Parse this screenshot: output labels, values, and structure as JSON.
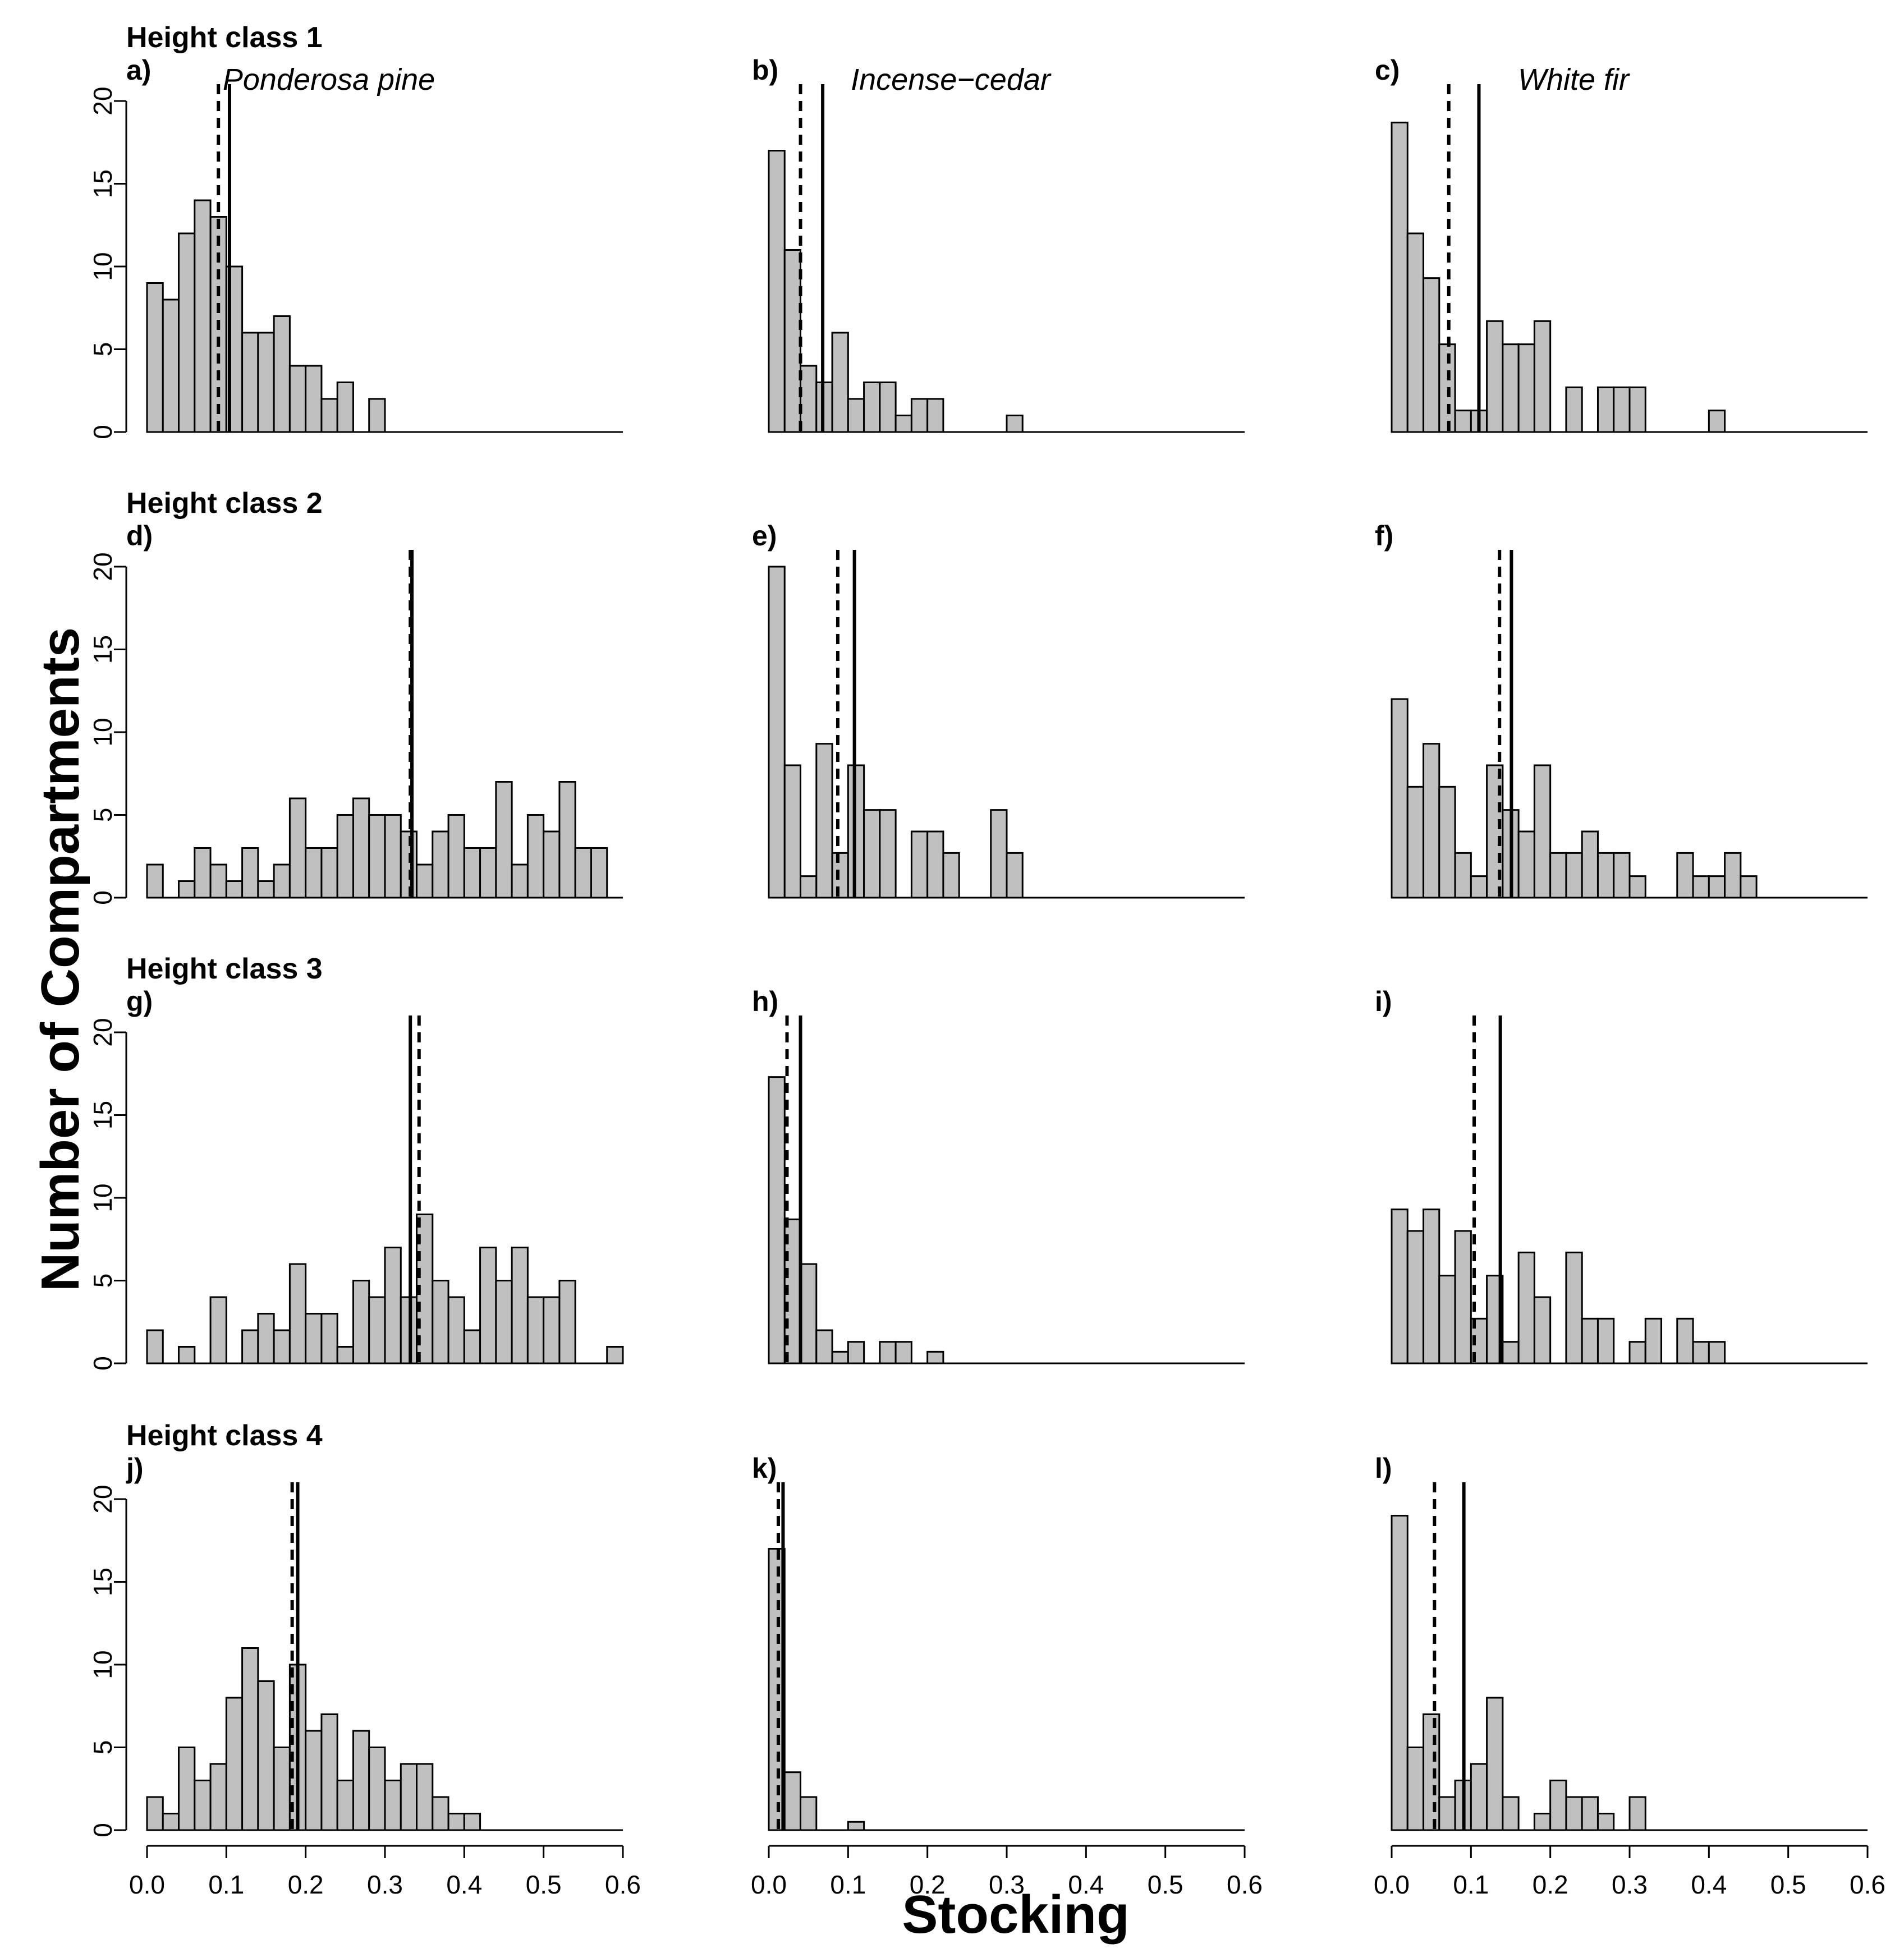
{
  "axis_titles": {
    "x": "Stocking",
    "y": "Number of Compartments"
  },
  "species": [
    "Ponderosa pine",
    "Incense−cedar",
    "White fir"
  ],
  "row_titles": [
    "Height class 1",
    "Height class 2",
    "Height class 3",
    "Height class 4"
  ],
  "colors": {
    "bar_fill": "#c0c0c0",
    "outline": "#000000",
    "background": "#ffffff"
  },
  "chart_data": [
    {
      "type": "bar",
      "panel": "a)",
      "row_title": "Height class 1",
      "species": "Ponderosa pine",
      "xlabel": "Stocking",
      "ylabel": "Number of Compartments",
      "xlim": [
        0,
        0.6
      ],
      "ylim": [
        0,
        20
      ],
      "bin_width": 0.02,
      "bin_start": 0,
      "values": [
        9,
        8,
        12,
        14,
        13,
        10,
        6,
        6,
        7,
        4,
        4,
        2,
        3,
        0,
        2
      ],
      "median_dashed": 0.09,
      "mean_solid": 0.104,
      "xticks": [
        "0.0",
        "0.1",
        "0.2",
        "0.3",
        "0.4",
        "0.5",
        "0.6"
      ],
      "yticks": [
        "0",
        "5",
        "10",
        "15",
        "20"
      ]
    },
    {
      "type": "bar",
      "panel": "b)",
      "species": "Incense−cedar",
      "xlim": [
        0,
        0.6
      ],
      "ylim": [
        0,
        20
      ],
      "bin_width": 0.02,
      "bin_start": 0,
      "values": [
        17,
        11,
        4,
        3,
        6,
        2,
        3,
        3,
        1,
        2,
        2,
        0,
        0,
        0,
        0,
        1
      ],
      "median_dashed": 0.04,
      "mean_solid": 0.068,
      "xticks": [
        "0.0",
        "0.1",
        "0.2",
        "0.3",
        "0.4",
        "0.5",
        "0.6"
      ]
    },
    {
      "type": "bar",
      "panel": "c)",
      "species": "White fir",
      "xlim": [
        0,
        0.6
      ],
      "ylim": [
        0,
        20
      ],
      "bin_width": 0.02,
      "bin_start": 0,
      "values": [
        18.7,
        12,
        9.3,
        5.3,
        1.3,
        1.3,
        6.7,
        5.3,
        5.3,
        6.7,
        0,
        2.7,
        0,
        2.7,
        2.7,
        2.7,
        0,
        0,
        0,
        0,
        1.3
      ],
      "median_dashed": 0.072,
      "mean_solid": 0.11,
      "xticks": [
        "0.0",
        "0.1",
        "0.2",
        "0.3",
        "0.4",
        "0.5",
        "0.6"
      ]
    },
    {
      "type": "bar",
      "panel": "d)",
      "row_title": "Height class 2",
      "species": "Ponderosa pine",
      "xlim": [
        0,
        0.6
      ],
      "ylim": [
        0,
        20
      ],
      "bin_width": 0.02,
      "bin_start": 0,
      "values": [
        2,
        0,
        1,
        3,
        2,
        1,
        3,
        1,
        2,
        6,
        3,
        3,
        5,
        6,
        5,
        5,
        4,
        2,
        4,
        5,
        3,
        3,
        7,
        2,
        5,
        4,
        7,
        3,
        3
      ],
      "median_dashed": 0.332,
      "mean_solid": 0.334,
      "xticks": [
        "0.0",
        "0.1",
        "0.2",
        "0.3",
        "0.4",
        "0.5",
        "0.6"
      ],
      "yticks": [
        "0",
        "5",
        "10",
        "15",
        "20"
      ]
    },
    {
      "type": "bar",
      "panel": "e)",
      "species": "Incense−cedar",
      "xlim": [
        0,
        0.6
      ],
      "ylim": [
        0,
        20
      ],
      "bin_width": 0.02,
      "bin_start": 0,
      "values": [
        20,
        8,
        1.3,
        9.3,
        2.7,
        8,
        5.3,
        5.3,
        0,
        4,
        4,
        2.7,
        0,
        0,
        5.3,
        2.7
      ],
      "median_dashed": 0.087,
      "mean_solid": 0.108,
      "xticks": [
        "0.0",
        "0.1",
        "0.2",
        "0.3",
        "0.4",
        "0.5",
        "0.6"
      ]
    },
    {
      "type": "bar",
      "panel": "f)",
      "species": "White fir",
      "xlim": [
        0,
        0.6
      ],
      "ylim": [
        0,
        20
      ],
      "bin_width": 0.02,
      "bin_start": 0,
      "values": [
        12,
        6.7,
        9.3,
        6.7,
        2.7,
        1.3,
        8,
        5.3,
        4,
        8,
        2.7,
        2.7,
        4,
        2.7,
        2.7,
        1.3,
        0,
        0,
        2.7,
        1.3,
        1.3,
        2.7,
        1.3
      ],
      "median_dashed": 0.136,
      "mean_solid": 0.151,
      "xticks": [
        "0.0",
        "0.1",
        "0.2",
        "0.3",
        "0.4",
        "0.5",
        "0.6"
      ]
    },
    {
      "type": "bar",
      "panel": "g)",
      "row_title": "Height class 3",
      "species": "Ponderosa pine",
      "xlim": [
        0,
        0.6
      ],
      "ylim": [
        0,
        20
      ],
      "bin_width": 0.02,
      "bin_start": 0,
      "values": [
        2,
        0,
        1,
        0,
        4,
        0,
        2,
        3,
        2,
        6,
        3,
        3,
        1,
        5,
        4,
        7,
        4,
        9,
        5,
        4,
        2,
        7,
        5,
        7,
        4,
        4,
        5,
        0,
        0,
        1
      ],
      "median_dashed": 0.343,
      "mean_solid": 0.332,
      "xticks": [
        "0.0",
        "0.1",
        "0.2",
        "0.3",
        "0.4",
        "0.5",
        "0.6"
      ],
      "yticks": [
        "0",
        "5",
        "10",
        "15",
        "20"
      ]
    },
    {
      "type": "bar",
      "panel": "h)",
      "species": "Incense−cedar",
      "xlim": [
        0,
        0.6
      ],
      "ylim": [
        0,
        20
      ],
      "bin_width": 0.02,
      "bin_start": 0,
      "values": [
        17.3,
        8.7,
        6,
        2,
        0.7,
        1.3,
        0,
        1.3,
        1.3,
        0,
        0.7
      ],
      "median_dashed": 0.023,
      "mean_solid": 0.04,
      "xticks": [
        "0.0",
        "0.1",
        "0.2",
        "0.3",
        "0.4",
        "0.5",
        "0.6"
      ]
    },
    {
      "type": "bar",
      "panel": "i)",
      "species": "White fir",
      "xlim": [
        0,
        0.6
      ],
      "ylim": [
        0,
        20
      ],
      "bin_width": 0.02,
      "bin_start": 0,
      "values": [
        9.3,
        8,
        9.3,
        5.3,
        8,
        2.7,
        5.3,
        1.3,
        6.7,
        4,
        0,
        6.7,
        2.7,
        2.7,
        0,
        1.3,
        2.7,
        0,
        2.7,
        1.3,
        1.3
      ],
      "median_dashed": 0.104,
      "mean_solid": 0.137,
      "xticks": [
        "0.0",
        "0.1",
        "0.2",
        "0.3",
        "0.4",
        "0.5",
        "0.6"
      ]
    },
    {
      "type": "bar",
      "panel": "j)",
      "row_title": "Height class 4",
      "species": "Ponderosa pine",
      "xlim": [
        0,
        0.6
      ],
      "ylim": [
        0,
        20
      ],
      "bin_width": 0.02,
      "bin_start": 0,
      "values": [
        2,
        1,
        5,
        3,
        4,
        8,
        11,
        9,
        5,
        10,
        6,
        7,
        3,
        6,
        5,
        3,
        4,
        4,
        2,
        1,
        1
      ],
      "median_dashed": 0.183,
      "mean_solid": 0.19,
      "xticks": [
        "0.0",
        "0.1",
        "0.2",
        "0.3",
        "0.4",
        "0.5",
        "0.6"
      ],
      "yticks": [
        "0",
        "5",
        "10",
        "15",
        "20"
      ]
    },
    {
      "type": "bar",
      "panel": "k)",
      "species": "Incense−cedar",
      "xlim": [
        0,
        0.6
      ],
      "ylim": [
        0,
        20
      ],
      "bin_width": 0.02,
      "bin_start": 0,
      "values": [
        17,
        3.5,
        2,
        0,
        0,
        0.5
      ],
      "median_dashed": 0.012,
      "mean_solid": 0.018,
      "xticks": [
        "0.0",
        "0.1",
        "0.2",
        "0.3",
        "0.4",
        "0.5",
        "0.6"
      ]
    },
    {
      "type": "bar",
      "panel": "l)",
      "species": "White fir",
      "xlim": [
        0,
        0.6
      ],
      "ylim": [
        0,
        20
      ],
      "bin_width": 0.02,
      "bin_start": 0,
      "values": [
        19,
        5,
        7,
        2,
        3,
        4,
        8,
        2,
        0,
        1,
        3,
        2,
        2,
        1,
        0,
        2
      ],
      "median_dashed": 0.054,
      "mean_solid": 0.091,
      "xticks": [
        "0.0",
        "0.1",
        "0.2",
        "0.3",
        "0.4",
        "0.5",
        "0.6"
      ]
    }
  ]
}
